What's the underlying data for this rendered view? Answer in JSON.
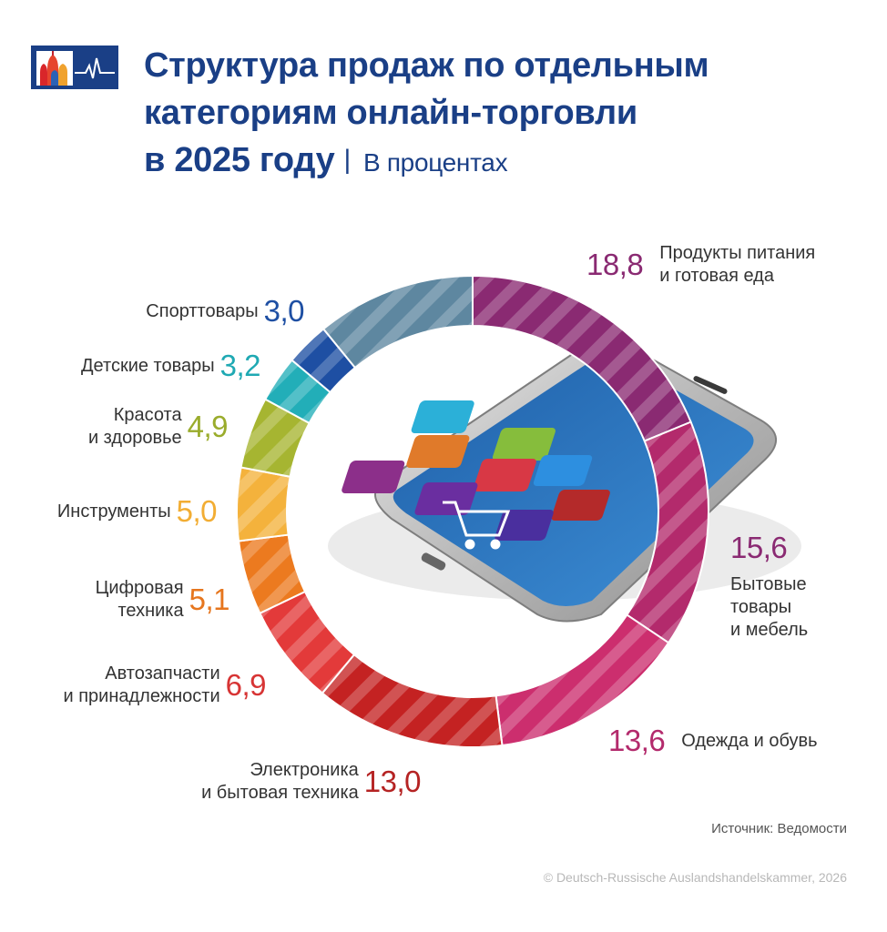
{
  "header": {
    "title_line1": "Структура продаж по отдельным",
    "title_line2": "категориям онлайн-торговли",
    "title_line3": "в 2025 году",
    "separator": "|",
    "unit": "В процентах"
  },
  "chart_data": {
    "type": "pie",
    "title": "Структура продаж по отдельным категориям онлайн-торговли в 2025 году",
    "unit": "В процентах",
    "slices": [
      {
        "label_line1": "Продукты питания",
        "label_line2": "и готовая еда",
        "value_text": "18,8",
        "value": 18.8,
        "color": "#8a2a72"
      },
      {
        "label_line1": "Бытовые",
        "label_line2": "товары",
        "label_line3": "и мебель",
        "value_text": "15,6",
        "value": 15.6,
        "color": "#b32a6c"
      },
      {
        "label_line1": "Одежда и обувь",
        "value_text": "13,6",
        "value": 13.6,
        "color": "#cc2e6e"
      },
      {
        "label_line1": "Электроника",
        "label_line2": "и бытовая техника",
        "value_text": "13,0",
        "value": 13.0,
        "color": "#c42222"
      },
      {
        "label_line1": "Автозапчасти",
        "label_line2": "и принадлежности",
        "value_text": "6,9",
        "value": 6.9,
        "color": "#e33a3a"
      },
      {
        "label_line1": "Цифровая",
        "label_line2": "техника",
        "value_text": "5,1",
        "value": 5.1,
        "color": "#ec7a1f"
      },
      {
        "label_line1": "Инструменты",
        "value_text": "5,0",
        "value": 5.0,
        "color": "#f4b23c"
      },
      {
        "label_line1": "Красота",
        "label_line2": "и здоровье",
        "value_text": "4,9",
        "value": 4.9,
        "color": "#a6b531"
      },
      {
        "label_line1": "Детские товары",
        "value_text": "3,2",
        "value": 3.2,
        "color": "#22aeb8"
      },
      {
        "label_line1": "Спорттовары",
        "value_text": "3,0",
        "value": 3.0,
        "color": "#1e4fa3"
      },
      {
        "value": 10.9,
        "color": "#5e87a0"
      }
    ],
    "direction": "clockwise from top"
  },
  "footer": {
    "source": "Источник: Ведомости",
    "copyright": "© Deutsch-Russische Auslandshandelskammer, 2026"
  },
  "icons": [
    "ahk-logo-icon",
    "smartphone-illustration",
    "shopping-cart-icon"
  ]
}
